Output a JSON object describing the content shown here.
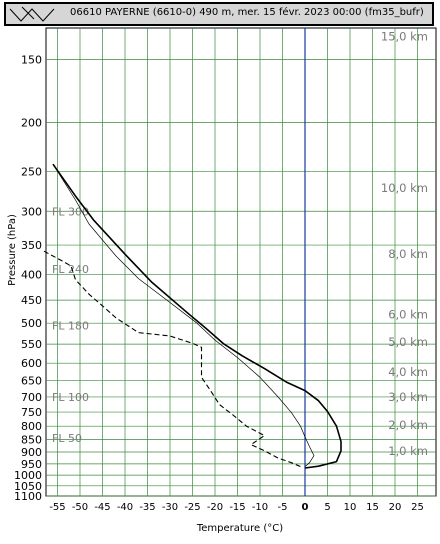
{
  "window": {
    "title": "06610 PAYERNE (6610-0) 490 m, mer. 15 févr. 2023 00:00 (fm35_bufr)"
  },
  "chart_data": {
    "type": "line",
    "title": "06610 PAYERNE (6610-0) 490 m, mer. 15 févr. 2023 00:00 (fm35_bufr)",
    "xlabel": "Temperature (°C)",
    "ylabel": "Pressure (hPa)",
    "xlim": [
      -58,
      28
    ],
    "ylim": [
      1100,
      130
    ],
    "y_scale": "log",
    "grid": true,
    "x_ticks": [
      -55,
      -50,
      -45,
      -40,
      -35,
      -30,
      -25,
      -20,
      -15,
      -10,
      -5,
      0,
      5,
      10,
      15,
      20,
      25
    ],
    "y_ticks": [
      150,
      200,
      250,
      300,
      350,
      400,
      450,
      500,
      550,
      600,
      650,
      700,
      750,
      800,
      850,
      900,
      950,
      1000,
      1050,
      1100
    ],
    "altitude_labels": [
      {
        "label": "15,0 km",
        "p": 135
      },
      {
        "label": "10,0 km",
        "p": 270
      },
      {
        "label": "8,0 km",
        "p": 365
      },
      {
        "label": "6,0 km",
        "p": 480
      },
      {
        "label": "5,0 km",
        "p": 545
      },
      {
        "label": "4,0 km",
        "p": 625
      },
      {
        "label": "3,0 km",
        "p": 700
      },
      {
        "label": "2,0 km",
        "p": 795
      },
      {
        "label": "1,0 km",
        "p": 895
      }
    ],
    "flight_levels": [
      {
        "label": "FL 300",
        "p": 300
      },
      {
        "label": "FL 240",
        "p": 390
      },
      {
        "label": "FL 180",
        "p": 505
      },
      {
        "label": "FL 100",
        "p": 700
      },
      {
        "label": "FL 50",
        "p": 845
      }
    ],
    "series": [
      {
        "style": "solid-thick",
        "color": "#000000",
        "points": [
          [
            -56,
            242
          ],
          [
            -51,
            280
          ],
          [
            -47,
            312
          ],
          [
            -40,
            365
          ],
          [
            -34,
            415
          ],
          [
            -26,
            478
          ],
          [
            -22,
            512
          ],
          [
            -18,
            550
          ],
          [
            -14,
            580
          ],
          [
            -9,
            615
          ],
          [
            -4,
            655
          ],
          [
            0,
            680
          ],
          [
            3,
            712
          ],
          [
            5,
            748
          ],
          [
            7,
            800
          ],
          [
            8,
            858
          ],
          [
            8,
            895
          ],
          [
            7,
            940
          ],
          [
            3,
            960
          ],
          [
            0,
            968
          ]
        ]
      },
      {
        "style": "solid-thin",
        "color": "#000000",
        "points": [
          [
            -56,
            242
          ],
          [
            -51,
            285
          ],
          [
            -48,
            318
          ],
          [
            -42,
            368
          ],
          [
            -37,
            408
          ],
          [
            -30,
            455
          ],
          [
            -24,
            500
          ],
          [
            -20,
            540
          ],
          [
            -15,
            585
          ],
          [
            -10,
            640
          ],
          [
            -6,
            700
          ],
          [
            -3,
            752
          ],
          [
            -1,
            800
          ],
          [
            0,
            840
          ],
          [
            1,
            878
          ],
          [
            2,
            915
          ],
          [
            1,
            945
          ],
          [
            0,
            962
          ]
        ]
      },
      {
        "style": "dashed",
        "color": "#000000",
        "points": [
          [
            -58,
            360
          ],
          [
            -55,
            372
          ],
          [
            -52,
            385
          ],
          [
            -51,
            410
          ],
          [
            -48,
            438
          ],
          [
            -45,
            462
          ],
          [
            -42,
            488
          ],
          [
            -39,
            508
          ],
          [
            -37,
            522
          ],
          [
            -30,
            530
          ],
          [
            -25,
            548
          ],
          [
            -23,
            558
          ],
          [
            -23,
            595
          ],
          [
            -23,
            640
          ],
          [
            -21,
            680
          ],
          [
            -19,
            725
          ],
          [
            -16,
            760
          ],
          [
            -13,
            800
          ],
          [
            -9,
            835
          ],
          [
            -12,
            870
          ],
          [
            -9,
            895
          ],
          [
            -6,
            925
          ],
          [
            -3,
            945
          ],
          [
            -1,
            962
          ]
        ]
      }
    ]
  }
}
